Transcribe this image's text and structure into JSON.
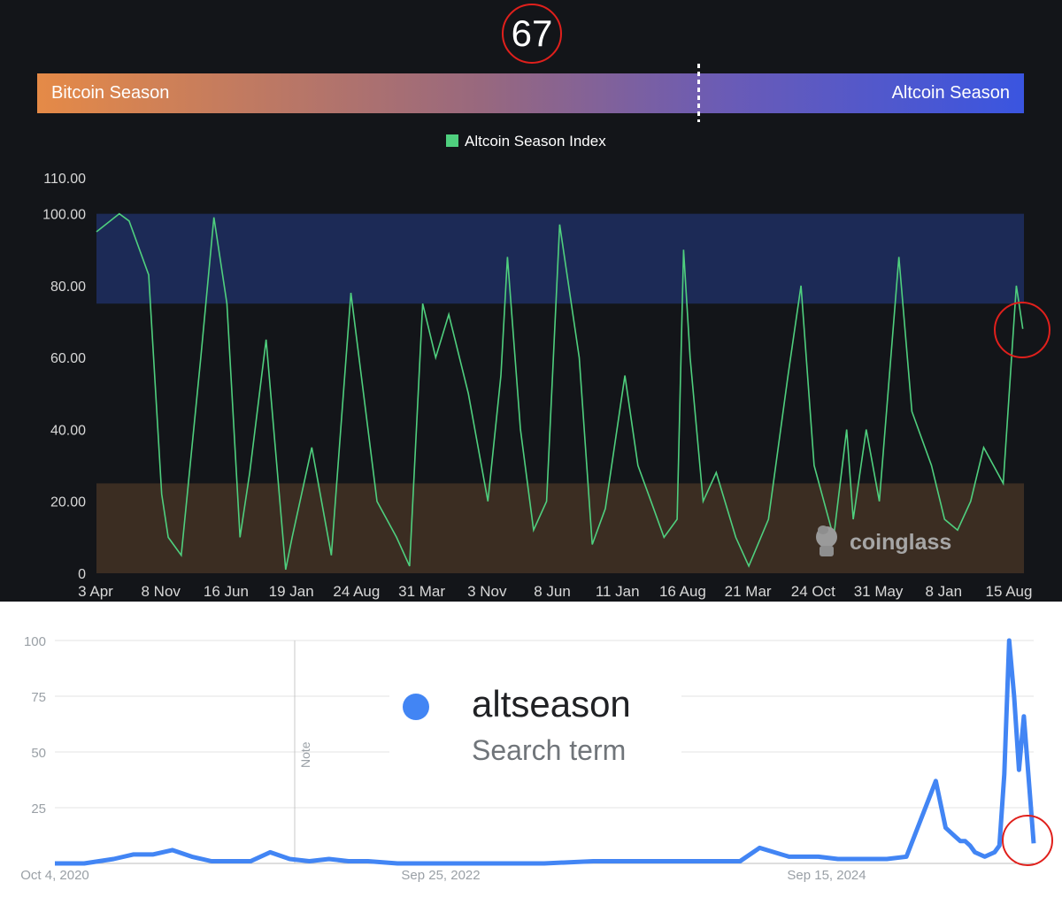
{
  "index_value": "67",
  "season_bar": {
    "left_label": "Bitcoin Season",
    "right_label": "Altcoin Season",
    "value": 67
  },
  "watermark": "coinglass",
  "colors": {
    "index_line": "#4fcf7e",
    "trend_line": "#4285f4",
    "highlight_circle": "#e0201c",
    "altcoin_zone": "#1c2a56",
    "bitcoin_zone": "#3b2d22"
  },
  "chart_data": [
    {
      "type": "line",
      "legend": "Altcoin Season Index",
      "y_ticks": [
        "0",
        "20.00",
        "40.00",
        "60.00",
        "80.00",
        "100.00",
        "110.00"
      ],
      "x_ticks": [
        "3 Apr",
        "8 Nov",
        "16 Jun",
        "19 Jan",
        "24 Aug",
        "31 Mar",
        "3 Nov",
        "8 Jun",
        "11 Jan",
        "16 Aug",
        "21 Mar",
        "24 Oct",
        "31 May",
        "8 Jan",
        "15 Aug"
      ],
      "ylim": [
        0,
        110
      ],
      "bands": [
        {
          "name": "altcoin",
          "from": 75,
          "to": 100
        },
        {
          "name": "bitcoin",
          "from": 0,
          "to": 25
        }
      ],
      "series": [
        {
          "name": "Altcoin Season Index",
          "x": [
            0,
            0.35,
            0.5,
            0.8,
            1.0,
            1.1,
            1.3,
            1.6,
            1.8,
            2.0,
            2.2,
            2.35,
            2.6,
            2.9,
            3.0,
            3.3,
            3.6,
            3.9,
            4.3,
            4.6,
            4.8,
            5.0,
            5.2,
            5.4,
            5.7,
            6.0,
            6.2,
            6.3,
            6.5,
            6.7,
            6.9,
            7.1,
            7.4,
            7.6,
            7.8,
            8.1,
            8.3,
            8.5,
            8.7,
            8.9,
            9.0,
            9.1,
            9.3,
            9.5,
            9.8,
            10.0,
            10.3,
            10.6,
            10.8,
            11.0,
            11.3,
            11.5,
            11.6,
            11.8,
            12.0,
            12.3,
            12.5,
            12.8,
            13.0,
            13.2,
            13.4,
            13.6,
            13.9,
            14.1,
            14.2
          ],
          "values": [
            95,
            100,
            98,
            83,
            22,
            10,
            5,
            60,
            99,
            75,
            10,
            28,
            65,
            1,
            10,
            35,
            5,
            78,
            20,
            10,
            2,
            75,
            60,
            72,
            50,
            20,
            55,
            88,
            40,
            12,
            20,
            97,
            60,
            8,
            18,
            55,
            30,
            20,
            10,
            15,
            90,
            60,
            20,
            28,
            10,
            2,
            15,
            55,
            80,
            30,
            10,
            40,
            15,
            40,
            20,
            88,
            45,
            30,
            15,
            12,
            20,
            35,
            25,
            80,
            68
          ]
        }
      ]
    },
    {
      "type": "line",
      "legend": "altseason",
      "legend_sub": "Search term",
      "note_label": "Note",
      "y_ticks": [
        "25",
        "50",
        "75",
        "100"
      ],
      "x_ticks": [
        "Oct 4, 2020",
        "Sep 25, 2022",
        "Sep 15, 2024"
      ],
      "ylim": [
        0,
        100
      ],
      "series": [
        {
          "name": "altseason",
          "x": [
            0,
            0.03,
            0.06,
            0.08,
            0.1,
            0.12,
            0.14,
            0.16,
            0.18,
            0.2,
            0.22,
            0.24,
            0.26,
            0.28,
            0.3,
            0.32,
            0.35,
            0.4,
            0.45,
            0.5,
            0.55,
            0.6,
            0.65,
            0.7,
            0.72,
            0.75,
            0.78,
            0.8,
            0.82,
            0.85,
            0.87,
            0.9,
            0.91,
            0.92,
            0.925,
            0.93,
            0.935,
            0.94,
            0.945,
            0.95,
            0.955,
            0.96,
            0.965,
            0.97,
            0.975,
            0.98,
            0.985,
            0.99,
            1.0
          ],
          "values": [
            0,
            0,
            2,
            4,
            4,
            6,
            3,
            1,
            1,
            1,
            5,
            2,
            1,
            2,
            1,
            1,
            0,
            0,
            0,
            0,
            1,
            1,
            1,
            1,
            7,
            3,
            3,
            2,
            2,
            2,
            3,
            37,
            16,
            12,
            10,
            10,
            8,
            5,
            4,
            3,
            4,
            5,
            8,
            40,
            100,
            75,
            42,
            66,
            9
          ]
        }
      ]
    }
  ]
}
